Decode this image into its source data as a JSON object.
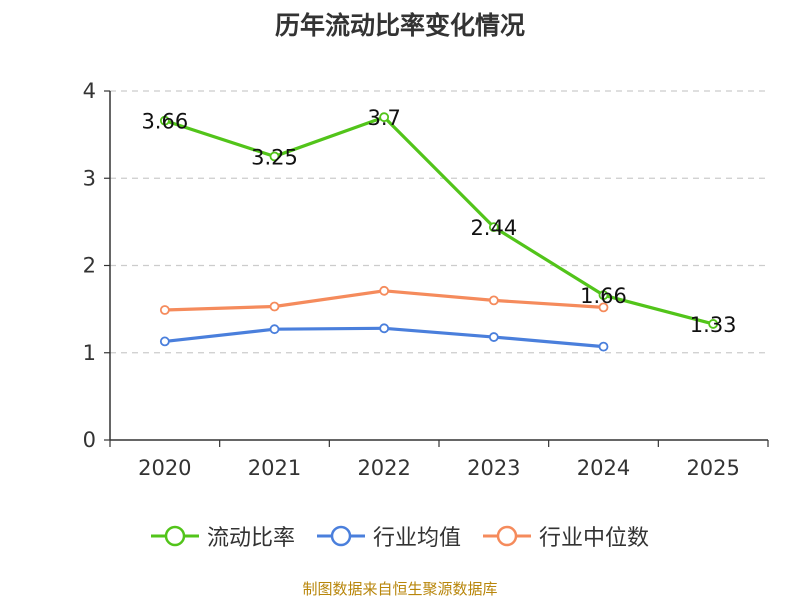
{
  "chart_data": {
    "type": "line",
    "title": "历年流动比率变化情况",
    "categories": [
      "2020",
      "2021",
      "2022",
      "2023",
      "2024",
      "2025"
    ],
    "ylim": [
      0,
      4
    ],
    "yticks": [
      0,
      1,
      2,
      3,
      4
    ],
    "grid": true,
    "legend_position": "bottom",
    "source": "制图数据来自恒生聚源数据库",
    "series": [
      {
        "name": "流动比率",
        "color": "#52c41a",
        "values": [
          3.66,
          3.25,
          3.7,
          2.44,
          1.66,
          1.33
        ],
        "labels": [
          "3.66",
          "3.25",
          "3.7",
          "2.44",
          "1.66",
          "1.33"
        ]
      },
      {
        "name": "行业均值",
        "color": "#4a7fdc",
        "values": [
          1.13,
          1.27,
          1.28,
          1.18,
          1.07,
          null
        ]
      },
      {
        "name": "行业中位数",
        "color": "#f58b5c",
        "values": [
          1.49,
          1.53,
          1.71,
          1.6,
          1.52,
          null
        ]
      }
    ]
  }
}
